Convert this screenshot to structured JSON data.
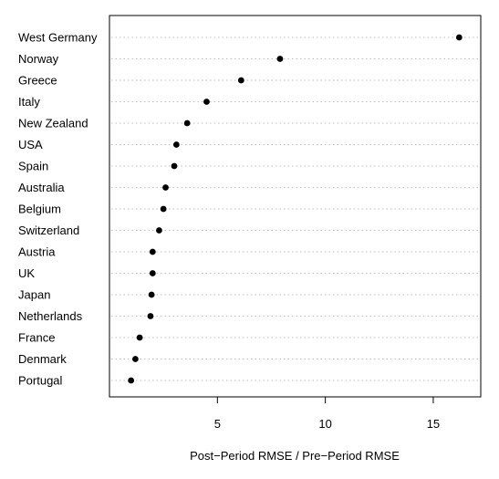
{
  "chart_data": {
    "type": "scatter",
    "title": "",
    "xlabel": "Post−Period RMSE / Pre−Period RMSE",
    "ylabel": "",
    "xlim": [
      0.0,
      17.2
    ],
    "x_ticks": [
      5,
      10,
      15
    ],
    "x_tick_labels": [
      "5",
      "10",
      "15"
    ],
    "grid": "horizontal dotted",
    "legend": "none",
    "categories": [
      "West Germany",
      "Norway",
      "Greece",
      "Italy",
      "New Zealand",
      "USA",
      "Spain",
      "Australia",
      "Belgium",
      "Switzerland",
      "Austria",
      "UK",
      "Japan",
      "Netherlands",
      "France",
      "Denmark",
      "Portugal"
    ],
    "values": [
      16.2,
      7.9,
      6.1,
      4.5,
      3.6,
      3.1,
      3.0,
      2.6,
      2.5,
      2.3,
      2.0,
      2.0,
      1.95,
      1.9,
      1.4,
      1.2,
      1.0
    ]
  }
}
